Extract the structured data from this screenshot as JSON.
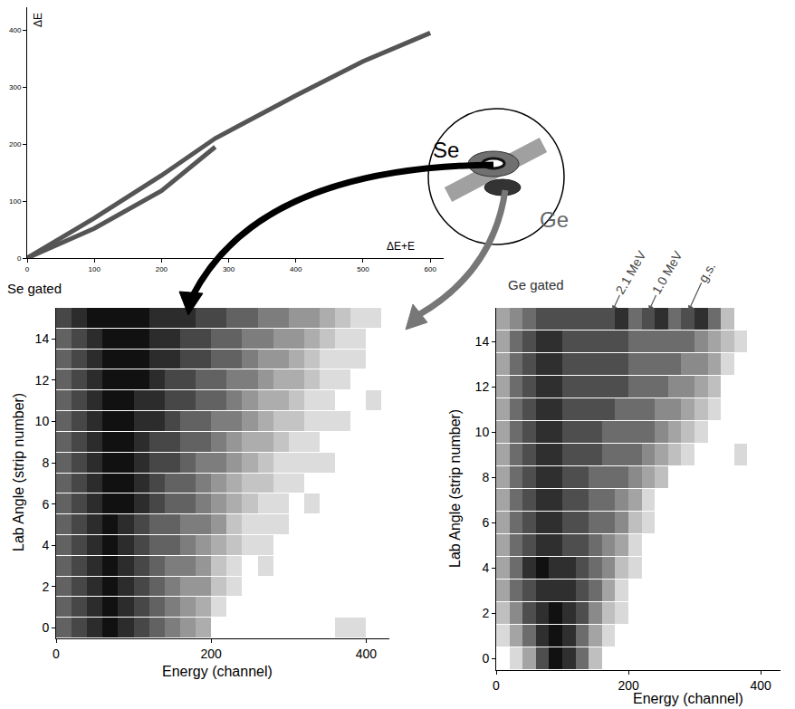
{
  "chart_data": [
    {
      "type": "scatter",
      "x_label": "ΔE+E",
      "y_label": "ΔE",
      "xlim": [
        0,
        620
      ],
      "ylim": [
        0,
        440
      ],
      "xticks": [
        0,
        100,
        200,
        300,
        400,
        500,
        600
      ],
      "yticks": [
        0,
        100,
        200,
        300,
        400
      ],
      "grid": false,
      "series": [
        {
          "x": [
            0,
            100,
            200,
            280,
            400,
            500,
            600
          ],
          "y": [
            0,
            70,
            145,
            210,
            285,
            345,
            395
          ],
          "color": "#555555"
        },
        {
          "x": [
            0,
            100,
            200,
            280
          ],
          "y": [
            0,
            52,
            118,
            195
          ],
          "color": "#555555"
        }
      ],
      "annotations": [
        {
          "text": "Se"
        },
        {
          "text": "Ge"
        }
      ]
    },
    {
      "type": "heatmap",
      "title": "Se gated",
      "x_label": "Energy (channel)",
      "y_label": "Lab Angle (strip number)",
      "xlim": [
        0,
        430
      ],
      "ylim": [
        -0.5,
        15.5
      ],
      "xticks": [
        0,
        200,
        400
      ],
      "yticks": [
        0,
        2,
        4,
        6,
        8,
        10,
        12,
        14
      ],
      "grid": false,
      "x": [
        10,
        30,
        50,
        70,
        90,
        110,
        130,
        150,
        170,
        190,
        210,
        230,
        250,
        270,
        290,
        310,
        330,
        350,
        370,
        390,
        410
      ],
      "y": [
        0,
        1,
        2,
        3,
        4,
        5,
        6,
        7,
        8,
        9,
        10,
        11,
        12,
        13,
        14,
        15
      ],
      "cells": [
        [
          6,
          7,
          8,
          9,
          8,
          7,
          6,
          5,
          4,
          3,
          0,
          0,
          0,
          0,
          0,
          0,
          0,
          0,
          1,
          1,
          0
        ],
        [
          6,
          7,
          8,
          9,
          8,
          7,
          6,
          5,
          4,
          3,
          1,
          0,
          0,
          0,
          0,
          0,
          0,
          0,
          0,
          0,
          0
        ],
        [
          6,
          7,
          8,
          9,
          8,
          7,
          6,
          5,
          4,
          4,
          2,
          1,
          0,
          0,
          0,
          0,
          0,
          0,
          0,
          0,
          0
        ],
        [
          6,
          7,
          8,
          9,
          8,
          7,
          6,
          5,
          5,
          4,
          2,
          1,
          0,
          1,
          0,
          0,
          0,
          0,
          0,
          0,
          0
        ],
        [
          6,
          7,
          8,
          9,
          8,
          7,
          6,
          6,
          5,
          4,
          3,
          2,
          1,
          1,
          0,
          0,
          0,
          0,
          0,
          0,
          0
        ],
        [
          6,
          7,
          8,
          9,
          8,
          7,
          6,
          6,
          5,
          5,
          4,
          2,
          1,
          1,
          1,
          0,
          0,
          0,
          0,
          0,
          0
        ],
        [
          6,
          7,
          8,
          9,
          9,
          8,
          7,
          6,
          6,
          5,
          4,
          3,
          2,
          1,
          1,
          0,
          1,
          0,
          0,
          0,
          0
        ],
        [
          6,
          7,
          8,
          9,
          9,
          8,
          7,
          6,
          6,
          5,
          4,
          3,
          2,
          2,
          1,
          1,
          0,
          0,
          0,
          0,
          0
        ],
        [
          6,
          7,
          8,
          9,
          9,
          8,
          7,
          7,
          6,
          5,
          5,
          4,
          3,
          2,
          1,
          1,
          1,
          1,
          0,
          0,
          0
        ],
        [
          6,
          7,
          8,
          9,
          9,
          8,
          7,
          7,
          6,
          6,
          5,
          4,
          3,
          3,
          2,
          1,
          1,
          0,
          0,
          0,
          0
        ],
        [
          6,
          7,
          8,
          9,
          9,
          8,
          8,
          7,
          6,
          6,
          5,
          5,
          4,
          3,
          2,
          2,
          1,
          1,
          1,
          0,
          0
        ],
        [
          6,
          7,
          8,
          9,
          9,
          8,
          8,
          7,
          7,
          6,
          6,
          5,
          4,
          3,
          3,
          2,
          1,
          1,
          0,
          0,
          1
        ],
        [
          6,
          7,
          8,
          9,
          9,
          9,
          8,
          7,
          7,
          6,
          6,
          5,
          5,
          4,
          3,
          3,
          2,
          1,
          1,
          0,
          0
        ],
        [
          6,
          7,
          8,
          9,
          9,
          9,
          8,
          8,
          7,
          7,
          6,
          6,
          5,
          4,
          4,
          3,
          2,
          1,
          1,
          1,
          0
        ],
        [
          6,
          7,
          8,
          9,
          9,
          9,
          8,
          8,
          7,
          7,
          6,
          6,
          5,
          5,
          4,
          4,
          3,
          2,
          1,
          1,
          0
        ],
        [
          7,
          8,
          9,
          9,
          9,
          9,
          8,
          8,
          8,
          7,
          7,
          6,
          6,
          5,
          5,
          4,
          4,
          3,
          2,
          1,
          1
        ]
      ]
    },
    {
      "type": "heatmap",
      "title": "Ge gated",
      "x_label": "Energy (channel)",
      "y_label": "Lab Angle (strip number)",
      "xlim": [
        0,
        430
      ],
      "ylim": [
        -0.5,
        15.5
      ],
      "xticks": [
        0,
        200,
        400
      ],
      "yticks": [
        0,
        2,
        4,
        6,
        8,
        10,
        12,
        14
      ],
      "grid": false,
      "x": [
        10,
        30,
        50,
        70,
        90,
        110,
        130,
        150,
        170,
        190,
        210,
        230,
        250,
        270,
        290,
        310,
        330,
        350,
        370,
        390,
        410
      ],
      "y": [
        0,
        1,
        2,
        3,
        4,
        5,
        6,
        7,
        8,
        9,
        10,
        11,
        12,
        13,
        14,
        15
      ],
      "cells": [
        [
          0,
          1,
          3,
          6,
          8,
          7,
          5,
          2,
          0,
          0,
          0,
          0,
          0,
          0,
          0,
          0,
          0,
          0,
          0,
          0,
          0
        ],
        [
          1,
          3,
          5,
          7,
          8,
          7,
          5,
          3,
          1,
          0,
          0,
          0,
          0,
          0,
          0,
          0,
          0,
          0,
          0,
          0,
          0
        ],
        [
          2,
          4,
          6,
          7,
          8,
          7,
          6,
          4,
          2,
          1,
          0,
          0,
          0,
          0,
          0,
          0,
          0,
          0,
          0,
          0,
          0
        ],
        [
          3,
          5,
          6,
          7,
          7,
          7,
          6,
          5,
          3,
          1,
          0,
          0,
          0,
          0,
          0,
          0,
          0,
          0,
          0,
          0,
          0
        ],
        [
          3,
          5,
          7,
          8,
          7,
          7,
          6,
          5,
          4,
          2,
          1,
          0,
          0,
          0,
          0,
          0,
          0,
          0,
          0,
          0,
          0
        ],
        [
          3,
          5,
          6,
          7,
          7,
          6,
          6,
          5,
          4,
          3,
          1,
          0,
          0,
          0,
          0,
          0,
          0,
          0,
          0,
          0,
          0
        ],
        [
          3,
          5,
          6,
          7,
          7,
          6,
          6,
          5,
          5,
          4,
          2,
          1,
          0,
          0,
          0,
          0,
          0,
          0,
          0,
          0,
          0
        ],
        [
          3,
          5,
          6,
          7,
          7,
          6,
          6,
          5,
          5,
          4,
          3,
          1,
          0,
          0,
          0,
          0,
          0,
          0,
          0,
          0,
          0
        ],
        [
          3,
          5,
          6,
          7,
          7,
          6,
          6,
          5,
          5,
          5,
          4,
          3,
          2,
          0,
          0,
          0,
          0,
          0,
          0,
          0,
          0
        ],
        [
          3,
          5,
          6,
          7,
          7,
          6,
          6,
          6,
          5,
          5,
          5,
          4,
          3,
          2,
          1,
          0,
          0,
          0,
          1,
          0,
          0
        ],
        [
          3,
          5,
          6,
          7,
          7,
          6,
          6,
          6,
          5,
          5,
          5,
          5,
          4,
          3,
          2,
          1,
          0,
          0,
          0,
          0,
          0
        ],
        [
          3,
          5,
          6,
          7,
          7,
          6,
          6,
          6,
          6,
          5,
          5,
          5,
          4,
          4,
          3,
          2,
          1,
          0,
          0,
          0,
          0
        ],
        [
          3,
          5,
          6,
          7,
          7,
          6,
          6,
          6,
          6,
          6,
          5,
          5,
          5,
          4,
          4,
          3,
          2,
          0,
          0,
          0,
          0
        ],
        [
          3,
          5,
          6,
          7,
          7,
          6,
          6,
          6,
          6,
          6,
          5,
          5,
          5,
          5,
          4,
          4,
          3,
          1,
          0,
          0,
          0
        ],
        [
          3,
          5,
          6,
          7,
          7,
          6,
          6,
          6,
          6,
          6,
          5,
          5,
          5,
          5,
          5,
          4,
          3,
          2,
          1,
          0,
          0
        ],
        [
          3,
          4,
          5,
          6,
          6,
          6,
          6,
          6,
          6,
          7,
          5,
          6,
          7,
          5,
          6,
          7,
          5,
          2,
          0,
          0,
          0
        ]
      ],
      "annotations": [
        {
          "text": "2.1 MeV",
          "x": 170,
          "y": 15
        },
        {
          "text": "1.0 MeV",
          "x": 225,
          "y": 15
        },
        {
          "text": "g.s.",
          "x": 285,
          "y": 15
        }
      ]
    }
  ]
}
